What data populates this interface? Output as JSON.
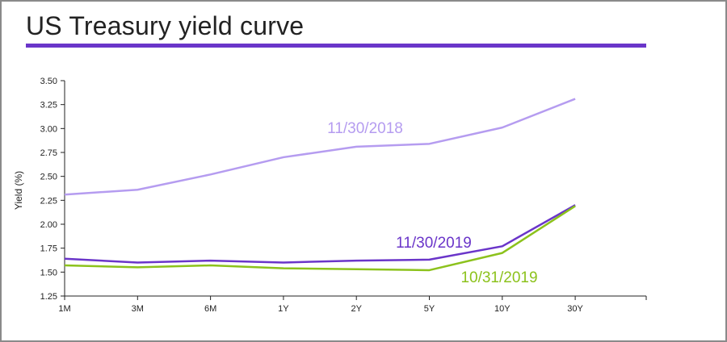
{
  "colors": {
    "accent": "#6a35c9",
    "series_2018": "#b59cf0",
    "series_nov2019": "#6a35c9",
    "series_oct2019": "#8cc21c",
    "axis": "#222222"
  },
  "chart_data": {
    "type": "line",
    "title": "US Treasury yield curve",
    "xlabel": "",
    "ylabel": "Yield (%)",
    "ylim": [
      1.25,
      3.5
    ],
    "yticks": [
      "3.50",
      "3.25",
      "3.00",
      "2.75",
      "2.50",
      "2.25",
      "2.00",
      "1.75",
      "1.50",
      "1.25"
    ],
    "categories": [
      "1M",
      "3M",
      "6M",
      "1Y",
      "2Y",
      "5Y",
      "10Y",
      "30Y"
    ],
    "grid": false,
    "legend": "inline labels",
    "series": [
      {
        "name": "11/30/2018",
        "values": [
          2.31,
          2.36,
          2.52,
          2.7,
          2.81,
          2.84,
          3.01,
          3.31
        ],
        "color": "#b59cf0"
      },
      {
        "name": "11/30/2019",
        "values": [
          1.64,
          1.6,
          1.62,
          1.6,
          1.62,
          1.63,
          1.77,
          2.2
        ],
        "color": "#6a35c9"
      },
      {
        "name": "10/31/2019",
        "values": [
          1.57,
          1.55,
          1.57,
          1.54,
          1.53,
          1.52,
          1.7,
          2.19
        ],
        "color": "#8cc21c"
      }
    ]
  }
}
